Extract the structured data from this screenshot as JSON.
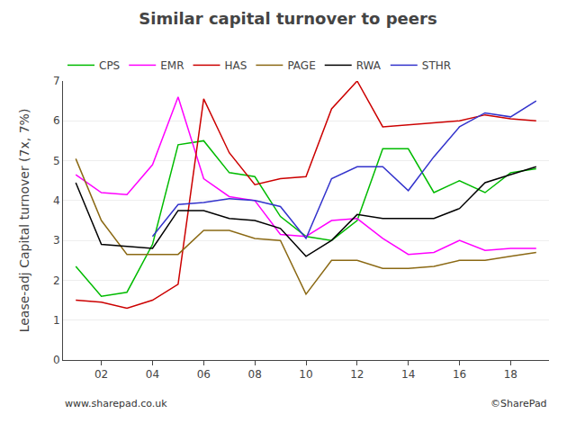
{
  "chart_data": {
    "type": "line",
    "title": "Similar capital turnover to peers",
    "y_label": "Lease-adj Capital turnover (7x, 7%)",
    "xlim": [
      0.5,
      19.5
    ],
    "xticks": [
      {
        "value": 2,
        "label": "02"
      },
      {
        "value": 4,
        "label": "04"
      },
      {
        "value": 6,
        "label": "06"
      },
      {
        "value": 8,
        "label": "08"
      },
      10,
      12,
      14,
      16,
      18
    ],
    "ylim": [
      0,
      7
    ],
    "yticks": [
      0,
      1,
      2,
      3,
      4,
      5,
      6,
      7
    ],
    "grid": "y",
    "legend": "upper left",
    "annotations": [
      "www.sharepad.co.uk",
      "©SharePad"
    ],
    "series": [
      {
        "name": "CPS",
        "color": "#00bb00",
        "x": [
          1,
          2,
          3,
          4,
          5,
          6,
          7,
          8,
          9,
          10,
          11,
          12,
          13,
          14,
          15,
          16,
          17,
          18,
          19
        ],
        "values": [
          2.35,
          1.6,
          1.7,
          2.9,
          5.4,
          5.5,
          4.7,
          4.6,
          3.6,
          3.1,
          3.0,
          3.5,
          5.3,
          5.3,
          4.2,
          4.5,
          4.2,
          4.7,
          4.8
        ]
      },
      {
        "name": "EMR",
        "color": "#ff00ff",
        "x": [
          1,
          2,
          3,
          4,
          5,
          6,
          7,
          8,
          9,
          10,
          11,
          12,
          13,
          14,
          15,
          16,
          17,
          18,
          19
        ],
        "values": [
          4.65,
          4.2,
          4.15,
          4.9,
          6.6,
          4.55,
          4.1,
          4.0,
          3.15,
          3.1,
          3.5,
          3.55,
          3.05,
          2.65,
          2.7,
          3.0,
          2.75,
          2.8,
          2.8
        ]
      },
      {
        "name": "HAS",
        "color": "#cc0000",
        "x": [
          1,
          2,
          3,
          4,
          5,
          6,
          7,
          8,
          9,
          10,
          11,
          12,
          13,
          14,
          15,
          16,
          17,
          18,
          19
        ],
        "values": [
          1.5,
          1.45,
          1.3,
          1.5,
          1.9,
          6.55,
          5.2,
          4.4,
          4.55,
          4.6,
          6.3,
          7.0,
          5.85,
          5.9,
          5.95,
          6.0,
          6.15,
          6.05,
          6.0
        ]
      },
      {
        "name": "PAGE",
        "color": "#8B6914",
        "x": [
          1,
          2,
          3,
          4,
          5,
          6,
          7,
          8,
          9,
          10,
          11,
          12,
          13,
          14,
          15,
          16,
          17,
          18,
          19
        ],
        "values": [
          5.05,
          3.5,
          2.65,
          2.65,
          2.65,
          3.25,
          3.25,
          3.05,
          3.0,
          1.65,
          2.5,
          2.5,
          2.3,
          2.3,
          2.35,
          2.5,
          2.5,
          2.6,
          2.7
        ]
      },
      {
        "name": "RWA",
        "color": "#000000",
        "x": [
          1,
          2,
          3,
          4,
          5,
          6,
          7,
          8,
          9,
          10,
          11,
          12,
          13,
          14,
          15,
          16,
          17,
          18,
          19
        ],
        "values": [
          4.45,
          2.9,
          2.85,
          2.8,
          3.75,
          3.75,
          3.55,
          3.5,
          3.3,
          2.6,
          3.0,
          3.65,
          3.55,
          3.55,
          3.55,
          3.8,
          4.45,
          4.65,
          4.85
        ]
      },
      {
        "name": "STHR",
        "color": "#3333cc",
        "x": [
          4,
          5,
          6,
          7,
          8,
          9,
          10,
          11,
          12,
          13,
          14,
          15,
          16,
          17,
          18,
          19
        ],
        "values": [
          3.1,
          3.9,
          3.95,
          4.05,
          4.0,
          3.85,
          3.05,
          4.55,
          4.85,
          4.85,
          4.25,
          5.1,
          5.85,
          6.2,
          6.1,
          6.5
        ]
      }
    ]
  }
}
